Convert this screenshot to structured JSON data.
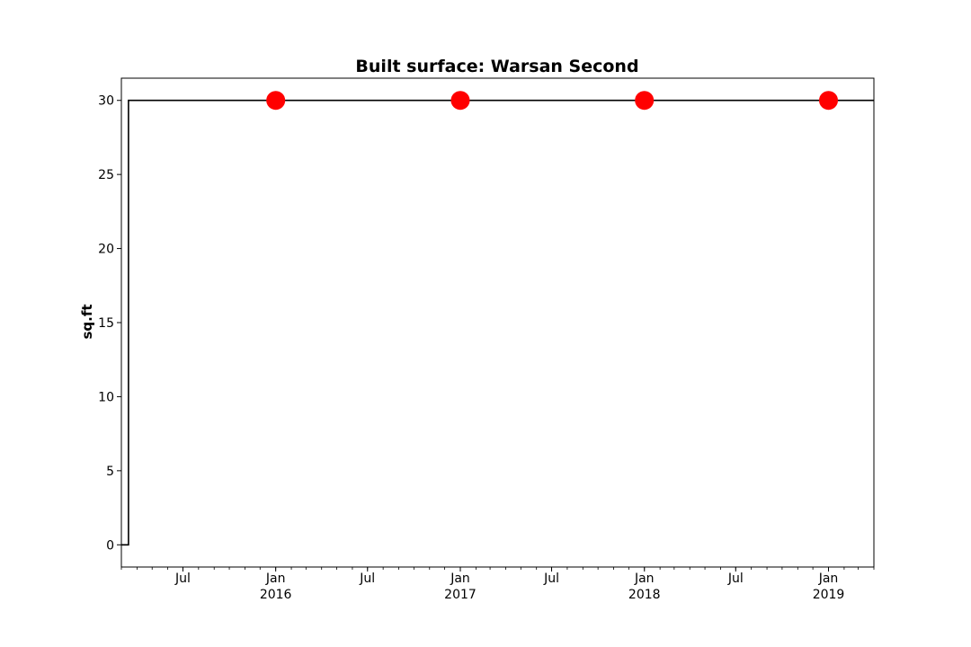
{
  "chart_data": {
    "type": "line",
    "title": "Built surface: Warsan Second",
    "xlabel": "",
    "ylabel": "sq.ft",
    "xlim": [
      "2015-03-01",
      "2019-04-01"
    ],
    "ylim": [
      -1.5,
      31.5
    ],
    "yticks": [
      0,
      5,
      10,
      15,
      20,
      25,
      30
    ],
    "xticks": [
      {
        "date": "2015-07-01",
        "label": "Jul",
        "sublabel": ""
      },
      {
        "date": "2016-01-01",
        "label": "Jan",
        "sublabel": "2016"
      },
      {
        "date": "2016-07-01",
        "label": "Jul",
        "sublabel": ""
      },
      {
        "date": "2017-01-01",
        "label": "Jan",
        "sublabel": "2017"
      },
      {
        "date": "2017-07-01",
        "label": "Jul",
        "sublabel": ""
      },
      {
        "date": "2018-01-01",
        "label": "Jan",
        "sublabel": "2018"
      },
      {
        "date": "2018-07-01",
        "label": "Jul",
        "sublabel": ""
      },
      {
        "date": "2019-01-01",
        "label": "Jan",
        "sublabel": "2019"
      }
    ],
    "series": [
      {
        "color": "#000000",
        "style": "step",
        "points": [
          {
            "x": "2015-03-01",
            "y": 0
          },
          {
            "x": "2015-03-15",
            "y": 0
          },
          {
            "x": "2015-03-15",
            "y": 30
          },
          {
            "x": "2019-04-01",
            "y": 30
          }
        ]
      },
      {
        "color": "#ff0000",
        "style": "markers",
        "points": [
          {
            "x": "2016-01-01",
            "y": 30
          },
          {
            "x": "2017-01-01",
            "y": 30
          },
          {
            "x": "2018-01-01",
            "y": 30
          },
          {
            "x": "2019-01-01",
            "y": 30
          }
        ]
      }
    ],
    "grid": false,
    "legend": "none"
  }
}
